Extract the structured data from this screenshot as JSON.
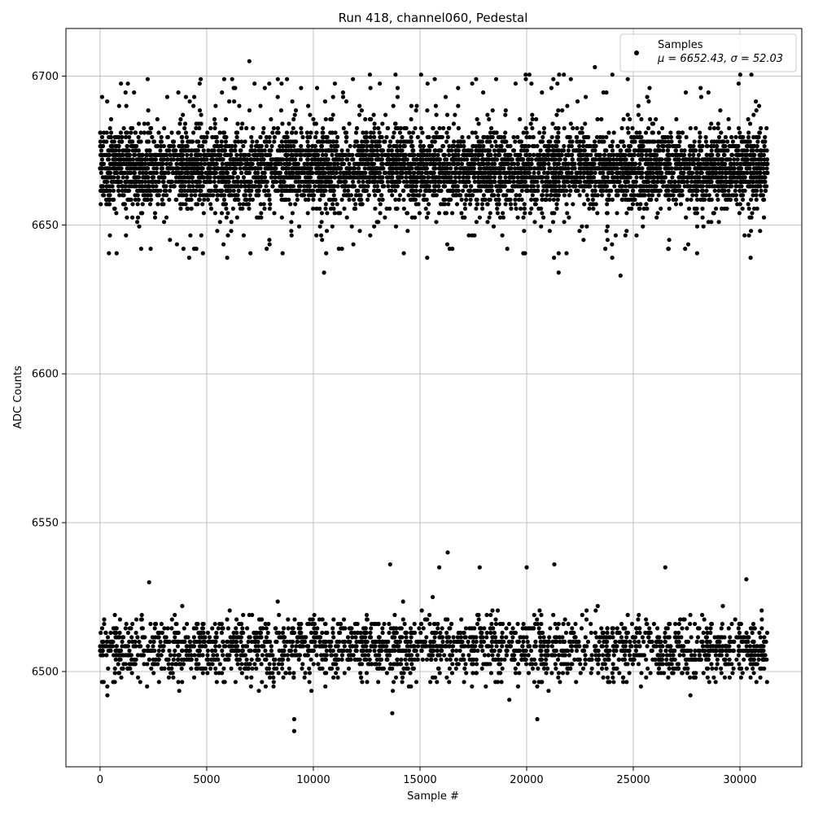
{
  "chart_data": {
    "type": "scatter",
    "title": "Run 418, channel060, Pedestal",
    "xlabel": "Sample #",
    "ylabel": "ADC Counts",
    "xlim": [
      -1600,
      32900
    ],
    "ylim": [
      6468,
      6716
    ],
    "x_ticks": [
      0,
      5000,
      10000,
      15000,
      20000,
      25000,
      30000
    ],
    "x_tick_labels": [
      "0",
      "5000",
      "10000",
      "15000",
      "20000",
      "25000",
      "30000"
    ],
    "y_ticks": [
      6500,
      6550,
      6600,
      6650,
      6700
    ],
    "y_tick_labels": [
      "6500",
      "6550",
      "6600",
      "6650",
      "6700"
    ],
    "grid": true,
    "legend": {
      "placement": "top-right",
      "entries": [
        "Samples",
        "μ = 6652.43, σ = 52.03"
      ]
    },
    "marker_color": "#000000",
    "series": [
      {
        "name": "Samples",
        "n_samples": 31300,
        "clusters": [
          {
            "label": "upper band",
            "center": 6669,
            "core_range": [
              6655,
              6688
            ],
            "outer_range": [
              6633,
              6705
            ]
          },
          {
            "label": "lower band",
            "center": 6508,
            "core_range": [
              6495,
              6522
            ],
            "outer_range": [
              6480,
              6540
            ]
          }
        ],
        "outliers": [
          {
            "x": 7000,
            "y": 6705
          },
          {
            "x": 23200,
            "y": 6703
          },
          {
            "x": 10500,
            "y": 6634
          },
          {
            "x": 24400,
            "y": 6633
          },
          {
            "x": 21500,
            "y": 6634
          },
          {
            "x": 9100,
            "y": 6480
          },
          {
            "x": 9100,
            "y": 6484
          },
          {
            "x": 16300,
            "y": 6540
          },
          {
            "x": 15900,
            "y": 6535
          },
          {
            "x": 13600,
            "y": 6536
          },
          {
            "x": 21300,
            "y": 6536
          },
          {
            "x": 20000,
            "y": 6535
          },
          {
            "x": 17800,
            "y": 6535
          },
          {
            "x": 26500,
            "y": 6535
          },
          {
            "x": 20500,
            "y": 6484
          },
          {
            "x": 13700,
            "y": 6486
          },
          {
            "x": 2300,
            "y": 6530
          },
          {
            "x": 30300,
            "y": 6531
          }
        ]
      }
    ]
  }
}
